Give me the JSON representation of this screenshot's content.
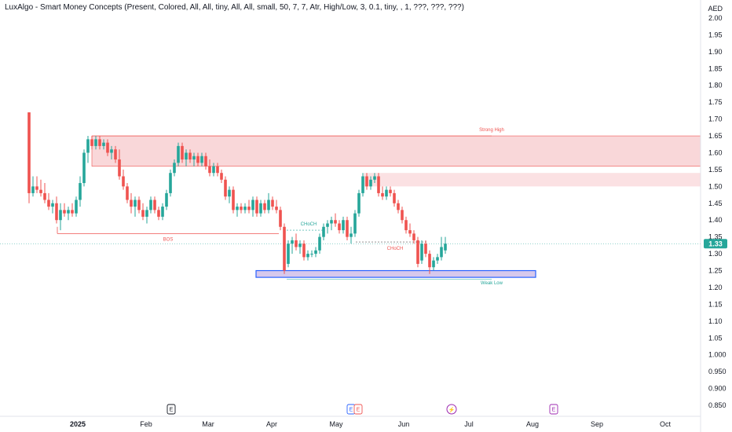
{
  "indicator_title": "LuxAlgo - Smart Money Concepts (Present, Colored, All, All, tiny, All, All, small, 50, 7, 7, Atr, High/Low, 3, 0.1, tiny, , 1, ???, ???, ???)",
  "currency": "AED",
  "last_price_label": "1.33",
  "colors": {
    "up": "#26a69a",
    "down": "#ef5350",
    "bearish_zone": "#f7c9cc",
    "bullish_zone": "#d7c8ec",
    "bos_line": "#ef5350",
    "price_label": "#26a69a"
  },
  "chart_data": {
    "type": "candlestick",
    "y_ticks": [
      "2.00",
      "1.95",
      "1.90",
      "1.85",
      "1.80",
      "1.75",
      "1.70",
      "1.65",
      "1.60",
      "1.55",
      "1.50",
      "1.45",
      "1.40",
      "1.35",
      "1.30",
      "1.25",
      "1.20",
      "1.15",
      "1.10",
      "1.05",
      "1.000",
      "0.950",
      "0.900",
      "0.850"
    ],
    "ylim": [
      0.85,
      2.0
    ],
    "x_ticks": [
      "2025",
      "Feb",
      "Mar",
      "Apr",
      "May",
      "Jun",
      "Jul",
      "Aug",
      "Sep",
      "Oct"
    ],
    "annotations": [
      {
        "text": "Strong High",
        "price": 1.65,
        "color": "#ef5350"
      },
      {
        "text": "BOS",
        "price": 1.36,
        "color": "#ef5350"
      },
      {
        "text": "CHoCH",
        "price": 1.37,
        "color": "#26a69a"
      },
      {
        "text": "CHoCH",
        "price": 1.33,
        "color": "#ef5350"
      },
      {
        "text": "Weak Low",
        "price": 1.23,
        "color": "#26a69a"
      }
    ],
    "zones": [
      {
        "kind": "bearish",
        "top": 1.65,
        "bottom": 1.56
      },
      {
        "kind": "bearish",
        "top": 1.54,
        "bottom": 1.5
      },
      {
        "kind": "bullish",
        "top": 1.25,
        "bottom": 1.23
      }
    ],
    "events": [
      "E",
      "E",
      "E",
      "lightning",
      "E"
    ],
    "candles": [
      {
        "o": 1.72,
        "h": 1.72,
        "l": 1.45,
        "c": 1.48
      },
      {
        "o": 1.48,
        "h": 1.53,
        "l": 1.47,
        "c": 1.5
      },
      {
        "o": 1.5,
        "h": 1.53,
        "l": 1.48,
        "c": 1.49
      },
      {
        "o": 1.49,
        "h": 1.52,
        "l": 1.47,
        "c": 1.48
      },
      {
        "o": 1.48,
        "h": 1.51,
        "l": 1.45,
        "c": 1.46
      },
      {
        "o": 1.46,
        "h": 1.48,
        "l": 1.43,
        "c": 1.44
      },
      {
        "o": 1.44,
        "h": 1.46,
        "l": 1.42,
        "c": 1.45
      },
      {
        "o": 1.45,
        "h": 1.47,
        "l": 1.39,
        "c": 1.4
      },
      {
        "o": 1.4,
        "h": 1.45,
        "l": 1.37,
        "c": 1.43
      },
      {
        "o": 1.43,
        "h": 1.45,
        "l": 1.41,
        "c": 1.42
      },
      {
        "o": 1.42,
        "h": 1.44,
        "l": 1.4,
        "c": 1.43
      },
      {
        "o": 1.43,
        "h": 1.45,
        "l": 1.41,
        "c": 1.42
      },
      {
        "o": 1.42,
        "h": 1.47,
        "l": 1.41,
        "c": 1.46
      },
      {
        "o": 1.46,
        "h": 1.53,
        "l": 1.44,
        "c": 1.51
      },
      {
        "o": 1.51,
        "h": 1.61,
        "l": 1.5,
        "c": 1.6
      },
      {
        "o": 1.6,
        "h": 1.65,
        "l": 1.57,
        "c": 1.64
      },
      {
        "o": 1.64,
        "h": 1.65,
        "l": 1.61,
        "c": 1.62
      },
      {
        "o": 1.62,
        "h": 1.65,
        "l": 1.61,
        "c": 1.64
      },
      {
        "o": 1.64,
        "h": 1.65,
        "l": 1.61,
        "c": 1.62
      },
      {
        "o": 1.62,
        "h": 1.64,
        "l": 1.61,
        "c": 1.63
      },
      {
        "o": 1.63,
        "h": 1.64,
        "l": 1.59,
        "c": 1.6
      },
      {
        "o": 1.6,
        "h": 1.62,
        "l": 1.58,
        "c": 1.61
      },
      {
        "o": 1.61,
        "h": 1.62,
        "l": 1.57,
        "c": 1.58
      },
      {
        "o": 1.58,
        "h": 1.61,
        "l": 1.52,
        "c": 1.53
      },
      {
        "o": 1.53,
        "h": 1.55,
        "l": 1.49,
        "c": 1.5
      },
      {
        "o": 1.5,
        "h": 1.51,
        "l": 1.45,
        "c": 1.46
      },
      {
        "o": 1.46,
        "h": 1.48,
        "l": 1.42,
        "c": 1.44
      },
      {
        "o": 1.44,
        "h": 1.47,
        "l": 1.41,
        "c": 1.46
      },
      {
        "o": 1.46,
        "h": 1.47,
        "l": 1.42,
        "c": 1.43
      },
      {
        "o": 1.43,
        "h": 1.45,
        "l": 1.4,
        "c": 1.41
      },
      {
        "o": 1.41,
        "h": 1.44,
        "l": 1.39,
        "c": 1.43
      },
      {
        "o": 1.43,
        "h": 1.47,
        "l": 1.42,
        "c": 1.46
      },
      {
        "o": 1.46,
        "h": 1.47,
        "l": 1.42,
        "c": 1.43
      },
      {
        "o": 1.43,
        "h": 1.44,
        "l": 1.4,
        "c": 1.41
      },
      {
        "o": 1.41,
        "h": 1.45,
        "l": 1.4,
        "c": 1.44
      },
      {
        "o": 1.44,
        "h": 1.49,
        "l": 1.43,
        "c": 1.48
      },
      {
        "o": 1.48,
        "h": 1.55,
        "l": 1.47,
        "c": 1.54
      },
      {
        "o": 1.54,
        "h": 1.58,
        "l": 1.53,
        "c": 1.57
      },
      {
        "o": 1.57,
        "h": 1.63,
        "l": 1.56,
        "c": 1.62
      },
      {
        "o": 1.62,
        "h": 1.63,
        "l": 1.57,
        "c": 1.58
      },
      {
        "o": 1.58,
        "h": 1.61,
        "l": 1.56,
        "c": 1.6
      },
      {
        "o": 1.6,
        "h": 1.61,
        "l": 1.57,
        "c": 1.58
      },
      {
        "o": 1.58,
        "h": 1.6,
        "l": 1.56,
        "c": 1.59
      },
      {
        "o": 1.59,
        "h": 1.6,
        "l": 1.56,
        "c": 1.57
      },
      {
        "o": 1.57,
        "h": 1.6,
        "l": 1.56,
        "c": 1.59
      },
      {
        "o": 1.59,
        "h": 1.6,
        "l": 1.55,
        "c": 1.56
      },
      {
        "o": 1.56,
        "h": 1.58,
        "l": 1.53,
        "c": 1.54
      },
      {
        "o": 1.54,
        "h": 1.57,
        "l": 1.53,
        "c": 1.56
      },
      {
        "o": 1.56,
        "h": 1.57,
        "l": 1.53,
        "c": 1.54
      },
      {
        "o": 1.54,
        "h": 1.55,
        "l": 1.51,
        "c": 1.52
      },
      {
        "o": 1.52,
        "h": 1.53,
        "l": 1.46,
        "c": 1.47
      },
      {
        "o": 1.47,
        "h": 1.5,
        "l": 1.45,
        "c": 1.49
      },
      {
        "o": 1.49,
        "h": 1.5,
        "l": 1.42,
        "c": 1.43
      },
      {
        "o": 1.43,
        "h": 1.45,
        "l": 1.41,
        "c": 1.44
      },
      {
        "o": 1.44,
        "h": 1.45,
        "l": 1.42,
        "c": 1.43
      },
      {
        "o": 1.43,
        "h": 1.45,
        "l": 1.42,
        "c": 1.44
      },
      {
        "o": 1.44,
        "h": 1.46,
        "l": 1.42,
        "c": 1.43
      },
      {
        "o": 1.43,
        "h": 1.47,
        "l": 1.41,
        "c": 1.46
      },
      {
        "o": 1.46,
        "h": 1.47,
        "l": 1.41,
        "c": 1.42
      },
      {
        "o": 1.42,
        "h": 1.46,
        "l": 1.41,
        "c": 1.45
      },
      {
        "o": 1.45,
        "h": 1.46,
        "l": 1.42,
        "c": 1.43
      },
      {
        "o": 1.43,
        "h": 1.48,
        "l": 1.42,
        "c": 1.46
      },
      {
        "o": 1.46,
        "h": 1.47,
        "l": 1.43,
        "c": 1.44
      },
      {
        "o": 1.44,
        "h": 1.46,
        "l": 1.42,
        "c": 1.43
      },
      {
        "o": 1.43,
        "h": 1.44,
        "l": 1.37,
        "c": 1.38
      },
      {
        "o": 1.38,
        "h": 1.39,
        "l": 1.24,
        "c": 1.25
      },
      {
        "o": 1.27,
        "h": 1.34,
        "l": 1.26,
        "c": 1.33
      },
      {
        "o": 1.33,
        "h": 1.35,
        "l": 1.3,
        "c": 1.34
      },
      {
        "o": 1.34,
        "h": 1.36,
        "l": 1.31,
        "c": 1.32
      },
      {
        "o": 1.32,
        "h": 1.34,
        "l": 1.3,
        "c": 1.33
      },
      {
        "o": 1.33,
        "h": 1.34,
        "l": 1.28,
        "c": 1.29
      },
      {
        "o": 1.29,
        "h": 1.31,
        "l": 1.28,
        "c": 1.3
      },
      {
        "o": 1.3,
        "h": 1.31,
        "l": 1.29,
        "c": 1.3
      },
      {
        "o": 1.3,
        "h": 1.32,
        "l": 1.29,
        "c": 1.31
      },
      {
        "o": 1.31,
        "h": 1.36,
        "l": 1.3,
        "c": 1.35
      },
      {
        "o": 1.35,
        "h": 1.39,
        "l": 1.34,
        "c": 1.38
      },
      {
        "o": 1.38,
        "h": 1.4,
        "l": 1.36,
        "c": 1.39
      },
      {
        "o": 1.39,
        "h": 1.41,
        "l": 1.37,
        "c": 1.4
      },
      {
        "o": 1.4,
        "h": 1.42,
        "l": 1.38,
        "c": 1.39
      },
      {
        "o": 1.39,
        "h": 1.4,
        "l": 1.36,
        "c": 1.37
      },
      {
        "o": 1.37,
        "h": 1.41,
        "l": 1.36,
        "c": 1.4
      },
      {
        "o": 1.4,
        "h": 1.41,
        "l": 1.34,
        "c": 1.35
      },
      {
        "o": 1.35,
        "h": 1.38,
        "l": 1.33,
        "c": 1.36
      },
      {
        "o": 1.36,
        "h": 1.43,
        "l": 1.35,
        "c": 1.42
      },
      {
        "o": 1.42,
        "h": 1.49,
        "l": 1.41,
        "c": 1.48
      },
      {
        "o": 1.48,
        "h": 1.54,
        "l": 1.47,
        "c": 1.53
      },
      {
        "o": 1.53,
        "h": 1.54,
        "l": 1.49,
        "c": 1.5
      },
      {
        "o": 1.5,
        "h": 1.53,
        "l": 1.49,
        "c": 1.52
      },
      {
        "o": 1.52,
        "h": 1.54,
        "l": 1.51,
        "c": 1.53
      },
      {
        "o": 1.53,
        "h": 1.54,
        "l": 1.47,
        "c": 1.48
      },
      {
        "o": 1.48,
        "h": 1.5,
        "l": 1.46,
        "c": 1.47
      },
      {
        "o": 1.47,
        "h": 1.5,
        "l": 1.46,
        "c": 1.49
      },
      {
        "o": 1.49,
        "h": 1.5,
        "l": 1.47,
        "c": 1.48
      },
      {
        "o": 1.48,
        "h": 1.49,
        "l": 1.44,
        "c": 1.45
      },
      {
        "o": 1.45,
        "h": 1.46,
        "l": 1.42,
        "c": 1.43
      },
      {
        "o": 1.43,
        "h": 1.44,
        "l": 1.39,
        "c": 1.4
      },
      {
        "o": 1.4,
        "h": 1.41,
        "l": 1.36,
        "c": 1.37
      },
      {
        "o": 1.37,
        "h": 1.39,
        "l": 1.35,
        "c": 1.36
      },
      {
        "o": 1.36,
        "h": 1.37,
        "l": 1.33,
        "c": 1.34
      },
      {
        "o": 1.34,
        "h": 1.35,
        "l": 1.26,
        "c": 1.27
      },
      {
        "o": 1.28,
        "h": 1.34,
        "l": 1.27,
        "c": 1.33
      },
      {
        "o": 1.33,
        "h": 1.34,
        "l": 1.29,
        "c": 1.3
      },
      {
        "o": 1.3,
        "h": 1.31,
        "l": 1.24,
        "c": 1.26
      },
      {
        "o": 1.26,
        "h": 1.29,
        "l": 1.25,
        "c": 1.28
      },
      {
        "o": 1.28,
        "h": 1.3,
        "l": 1.27,
        "c": 1.29
      },
      {
        "o": 1.29,
        "h": 1.35,
        "l": 1.28,
        "c": 1.32
      },
      {
        "o": 1.31,
        "h": 1.35,
        "l": 1.3,
        "c": 1.33
      }
    ]
  }
}
